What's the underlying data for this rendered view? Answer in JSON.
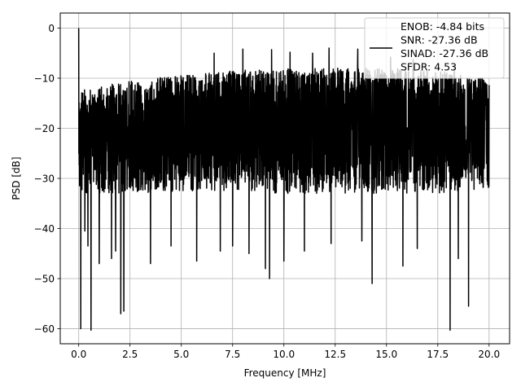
{
  "chart_data": {
    "type": "line",
    "xlabel": "Frequency [MHz]",
    "ylabel": "PSD [dB]",
    "xlim": [
      -0.9,
      21.0
    ],
    "ylim": [
      -63.0,
      3.0
    ],
    "xticks": [
      0.0,
      2.5,
      5.0,
      7.5,
      10.0,
      12.5,
      15.0,
      17.5,
      20.0
    ],
    "xtick_labels": [
      "0.0",
      "2.5",
      "5.0",
      "7.5",
      "10.0",
      "12.5",
      "15.0",
      "17.5",
      "20.0"
    ],
    "yticks": [
      0,
      -10,
      -20,
      -30,
      -40,
      -50,
      -60
    ],
    "ytick_labels": [
      "0",
      "−10",
      "−20",
      "−30",
      "−40",
      "−50",
      "−60"
    ],
    "grid": true,
    "line_color": "#000000",
    "legend": {
      "placement": "upper right",
      "entries": [
        "ENOB: -4.84 bits",
        "SNR: -27.36 dB",
        "SINAD: -27.36 dB",
        "SFDR: 4.53"
      ]
    },
    "series": [
      {
        "peak": {
          "x": 0.0,
          "y": 0.0
        },
        "x_range": [
          0.0,
          20.0
        ],
        "typical_ceiling_by_x": [
          [
            0.0,
            -12.5
          ],
          [
            2.5,
            -10.5
          ],
          [
            5.0,
            -9.5
          ],
          [
            7.5,
            -8.5
          ],
          [
            10.0,
            -8.0
          ],
          [
            12.5,
            -8.0
          ],
          [
            15.0,
            -8.0
          ],
          [
            17.5,
            -8.5
          ],
          [
            20.0,
            -10.0
          ]
        ],
        "typical_floor_by_x": [
          [
            0.0,
            -33.0
          ],
          [
            2.5,
            -33.0
          ],
          [
            5.0,
            -32.5
          ],
          [
            7.5,
            -32.5
          ],
          [
            10.0,
            -33.0
          ],
          [
            12.5,
            -33.0
          ],
          [
            15.0,
            -33.0
          ],
          [
            17.5,
            -33.0
          ],
          [
            20.0,
            -32.0
          ]
        ],
        "max_spikes": [
          {
            "x": 3.5,
            "y": -6.5
          },
          {
            "x": 4.5,
            "y": -5.5
          },
          {
            "x": 6.6,
            "y": -5.0
          },
          {
            "x": 8.0,
            "y": -4.2
          },
          {
            "x": 9.4,
            "y": -4.3
          },
          {
            "x": 10.3,
            "y": -4.8
          },
          {
            "x": 11.4,
            "y": -5.0
          },
          {
            "x": 12.2,
            "y": -4.0
          },
          {
            "x": 13.6,
            "y": -4.2
          },
          {
            "x": 14.3,
            "y": -4.8
          },
          {
            "x": 15.2,
            "y": -5.8
          },
          {
            "x": 16.3,
            "y": -6.3
          },
          {
            "x": 18.3,
            "y": -7.5
          }
        ],
        "min_dips": [
          {
            "x": 0.1,
            "y": -60.0
          },
          {
            "x": 0.3,
            "y": -40.5
          },
          {
            "x": 0.45,
            "y": -43.5
          },
          {
            "x": 0.6,
            "y": -60.3
          },
          {
            "x": 1.0,
            "y": -47.0
          },
          {
            "x": 1.6,
            "y": -46.0
          },
          {
            "x": 1.8,
            "y": -44.5
          },
          {
            "x": 2.05,
            "y": -57.0
          },
          {
            "x": 2.2,
            "y": -56.5
          },
          {
            "x": 3.5,
            "y": -47.0
          },
          {
            "x": 4.5,
            "y": -43.5
          },
          {
            "x": 5.75,
            "y": -46.5
          },
          {
            "x": 6.9,
            "y": -44.5
          },
          {
            "x": 7.5,
            "y": -43.5
          },
          {
            "x": 8.3,
            "y": -45.0
          },
          {
            "x": 9.1,
            "y": -48.0
          },
          {
            "x": 9.3,
            "y": -50.0
          },
          {
            "x": 10.0,
            "y": -46.5
          },
          {
            "x": 11.0,
            "y": -44.5
          },
          {
            "x": 12.3,
            "y": -43.0
          },
          {
            "x": 13.8,
            "y": -42.5
          },
          {
            "x": 14.3,
            "y": -51.0
          },
          {
            "x": 15.8,
            "y": -47.5
          },
          {
            "x": 16.5,
            "y": -44.0
          },
          {
            "x": 18.1,
            "y": -60.3
          },
          {
            "x": 18.5,
            "y": -46.0
          },
          {
            "x": 19.0,
            "y": -55.5
          }
        ]
      }
    ]
  }
}
